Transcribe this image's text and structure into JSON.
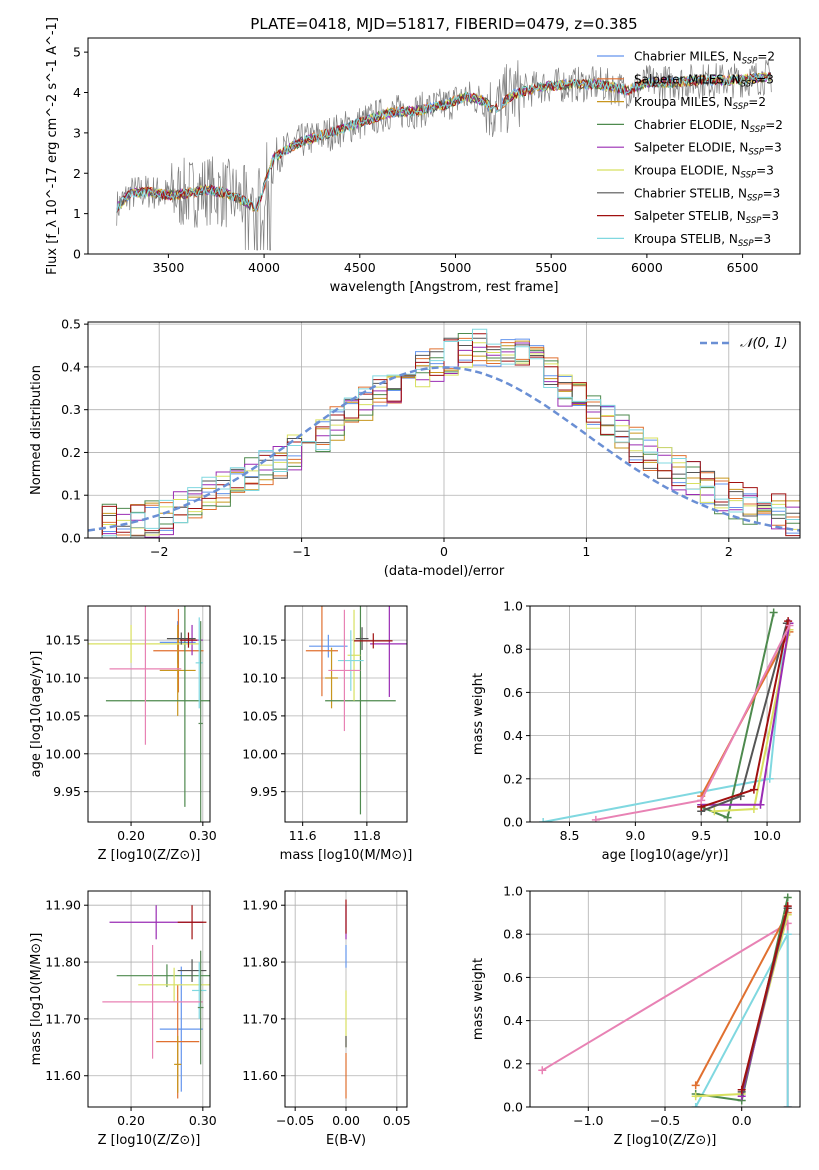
{
  "figure_title": "PLATE=0418, MJD=51817, FIBERID=0479, z=0.385",
  "models": [
    {
      "key": "chabrier_miles",
      "color": "#6495ed",
      "label_pre": "Chabrier MILES, N",
      "label_sub": "SSP",
      "label_post": "=2"
    },
    {
      "key": "salpeter_miles",
      "color": "#e07030",
      "label_pre": "Salpeter MILES, N",
      "label_sub": "SSP",
      "label_post": "=3"
    },
    {
      "key": "kroupa_miles",
      "color": "#c8961e",
      "label_pre": "Kroupa MILES, N",
      "label_sub": "SSP",
      "label_post": "=2"
    },
    {
      "key": "chabrier_elodie",
      "color": "#4e8a4e",
      "label_pre": "Chabrier ELODIE, N",
      "label_sub": "SSP",
      "label_post": "=2"
    },
    {
      "key": "salpeter_elodie",
      "color": "#9a2cb4",
      "label_pre": "Salpeter ELODIE, N",
      "label_sub": "SSP",
      "label_post": "=3"
    },
    {
      "key": "kroupa_elodie",
      "color": "#d8e060",
      "label_pre": "Kroupa ELODIE, N",
      "label_sub": "SSP",
      "label_post": "=3"
    },
    {
      "key": "chabrier_stelib",
      "color": "#555555",
      "label_pre": "Chabrier STELIB, N",
      "label_sub": "SSP",
      "label_post": "=3"
    },
    {
      "key": "salpeter_stelib",
      "color": "#a01010",
      "label_pre": "Salpeter STELIB, N",
      "label_sub": "SSP",
      "label_post": "=3"
    },
    {
      "key": "kroupa_stelib",
      "color": "#80d8e0",
      "label_pre": "Kroupa STELIB, N",
      "label_sub": "SSP",
      "label_post": "=3"
    }
  ],
  "chart_data": [
    {
      "id": "spectrum",
      "type": "line",
      "xlabel": "wavelength [Angstrom, rest frame]",
      "ylabel": "Flux [f_λ 10^-17 erg cm^-2 s^-1 A^-1]",
      "xlim": [
        3080,
        6800
      ],
      "ylim": [
        0,
        5.35
      ],
      "xticks": [
        3500,
        4000,
        4500,
        5000,
        5500,
        6000,
        6500
      ],
      "yticks": [
        0,
        1,
        2,
        3,
        4,
        5
      ],
      "grid": false,
      "legend_position": "right",
      "continuum": {
        "x": [
          3230,
          3300,
          3400,
          3500,
          3600,
          3700,
          3800,
          3900,
          3960,
          4050,
          4200,
          4350,
          4500,
          4650,
          4800,
          4950,
          5050,
          5150,
          5200,
          5300,
          5450,
          5600,
          5750,
          5900,
          6000,
          6150,
          6300,
          6450,
          6650
        ],
        "y": [
          1.15,
          1.5,
          1.55,
          1.45,
          1.5,
          1.6,
          1.5,
          1.3,
          1.1,
          2.4,
          2.8,
          3.0,
          3.25,
          3.5,
          3.55,
          3.7,
          3.9,
          3.8,
          3.55,
          3.95,
          4.15,
          4.2,
          4.2,
          4.05,
          4.25,
          4.25,
          4.3,
          4.3,
          4.4
        ]
      }
    },
    {
      "id": "residuals",
      "type": "bar",
      "xlabel": "(data-model)/error",
      "ylabel": "Normed distribution",
      "xlim": [
        -2.5,
        2.5
      ],
      "ylim": [
        0,
        0.505
      ],
      "xticks": [
        -2,
        -1,
        0,
        1,
        2
      ],
      "yticks": [
        0,
        0.1,
        0.2,
        0.3,
        0.4,
        0.5
      ],
      "grid": true,
      "legend_position": "top-right",
      "gaussian_label": "𝒩(0, 1)",
      "bin_width": 0.1,
      "envelope": {
        "x": [
          -2.5,
          -2.0,
          -1.5,
          -1.0,
          -0.5,
          0.0,
          0.3,
          0.6,
          1.0,
          1.5,
          2.0,
          2.5
        ],
        "y": [
          0.03,
          0.045,
          0.12,
          0.21,
          0.33,
          0.42,
          0.45,
          0.42,
          0.31,
          0.18,
          0.09,
          0.045
        ]
      }
    },
    {
      "id": "age_vs_Z",
      "type": "scatter",
      "xlabel": "Z [log10(Z/Z⊙)]",
      "ylabel": "age [log10(age/yr)]",
      "xlim": [
        0.14,
        0.31
      ],
      "ylim": [
        9.91,
        10.195
      ],
      "xticks": [
        0.2,
        0.3
      ],
      "yticks": [
        9.95,
        10.0,
        10.05,
        10.1,
        10.15
      ],
      "grid": true,
      "points": [
        {
          "model": "chabrier_miles",
          "x": 0.265,
          "xerr": 0.025,
          "y": 10.147,
          "yerr": 0.028
        },
        {
          "model": "salpeter_miles",
          "x": 0.266,
          "xerr": 0.035,
          "y": 10.136,
          "yerr": 0.055
        },
        {
          "model": "kroupa_miles",
          "x": 0.265,
          "xerr": 0.025,
          "y": 10.11,
          "yerr": 0.06
        },
        {
          "model": "chabrier_elodie",
          "x": 0.275,
          "xerr": 0.11,
          "y": 10.07,
          "yerr": 0.14
        },
        {
          "model": "salpeter_elodie",
          "x": 0.285,
          "xerr": 0.015,
          "y": 10.15,
          "yerr": 0.02
        },
        {
          "model": "kroupa_elodie",
          "x": 0.2,
          "xerr": 0.095,
          "y": 10.145,
          "yerr": 0.025
        },
        {
          "model": "chabrier_stelib",
          "x": 0.27,
          "xerr": 0.02,
          "y": 10.152,
          "yerr": 0.008
        },
        {
          "model": "salpeter_stelib",
          "x": 0.28,
          "xerr": 0.012,
          "y": 10.15,
          "yerr": 0.01
        },
        {
          "model": "kroupa_stelib",
          "x": 0.295,
          "xerr": 0.005,
          "y": 10.12,
          "yerr": 0.06
        },
        {
          "model": "pink",
          "x": 0.22,
          "xerr": 0.05,
          "y": 10.112,
          "yerr": 0.1
        },
        {
          "model": "green2",
          "x": 0.297,
          "xerr": 0.003,
          "y": 10.04,
          "yerr": 0.135
        }
      ]
    },
    {
      "id": "age_vs_mass",
      "type": "scatter",
      "xlabel": "mass [log10(M/M⊙)]",
      "ylabel": "",
      "xlim": [
        11.545,
        11.925
      ],
      "ylim": [
        9.91,
        10.195
      ],
      "xticks": [
        11.6,
        11.8
      ],
      "yticks": [
        9.95,
        10.0,
        10.05,
        10.1,
        10.15
      ],
      "grid": true,
      "points": [
        {
          "model": "chabrier_miles",
          "x": 11.68,
          "xerr": 0.06,
          "y": 10.142,
          "yerr": 0.015
        },
        {
          "model": "salpeter_miles",
          "x": 11.66,
          "xerr": 0.05,
          "y": 10.136,
          "yerr": 0.06
        },
        {
          "model": "kroupa_miles",
          "x": 11.69,
          "xerr": 0.02,
          "y": 10.1,
          "yerr": 0.04
        },
        {
          "model": "chabrier_elodie",
          "x": 11.78,
          "xerr": 0.11,
          "y": 10.07,
          "yerr": 0.15
        },
        {
          "model": "salpeter_elodie",
          "x": 11.87,
          "xerr": 0.06,
          "y": 10.145,
          "yerr": 0.07
        },
        {
          "model": "kroupa_elodie",
          "x": 11.76,
          "xerr": 0.02,
          "y": 10.13,
          "yerr": 0.06
        },
        {
          "model": "chabrier_stelib",
          "x": 11.785,
          "xerr": 0.02,
          "y": 10.152,
          "yerr": 0.015
        },
        {
          "model": "salpeter_stelib",
          "x": 11.82,
          "xerr": 0.06,
          "y": 10.149,
          "yerr": 0.01
        },
        {
          "model": "kroupa_stelib",
          "x": 11.75,
          "xerr": 0.04,
          "y": 10.123,
          "yerr": 0.04
        },
        {
          "model": "pink",
          "x": 11.73,
          "xerr": 0.05,
          "y": 10.11,
          "yerr": 0.08
        }
      ]
    },
    {
      "id": "weight_vs_age",
      "type": "line",
      "xlabel": "age [log10(age/yr)]",
      "ylabel": "mass weight",
      "xlim": [
        8.2,
        10.25
      ],
      "ylim": [
        0,
        1
      ],
      "xticks": [
        8.5,
        9.0,
        9.5,
        10.0
      ],
      "yticks": [
        0,
        0.2,
        0.4,
        0.6,
        0.8,
        1.0
      ],
      "grid": true,
      "series": [
        {
          "model": "kroupa_stelib",
          "x": [
            8.3,
            10.02,
            10.12
          ],
          "y": [
            0.0,
            0.2,
            0.8
          ]
        },
        {
          "model": "chabrier_elodie",
          "x": [
            9.5,
            9.7,
            10.05
          ],
          "y": [
            0.07,
            0.02,
            0.97
          ]
        },
        {
          "model": "salpeter_miles",
          "x": [
            9.5,
            10.17
          ],
          "y": [
            0.12,
            0.88
          ]
        },
        {
          "model": "kroupa_elodie",
          "x": [
            9.6,
            9.9,
            10.17
          ],
          "y": [
            0.05,
            0.06,
            0.89
          ]
        },
        {
          "model": "salpeter_elodie",
          "x": [
            9.5,
            9.95,
            10.17
          ],
          "y": [
            0.08,
            0.08,
            0.92
          ]
        },
        {
          "model": "chabrier_stelib",
          "x": [
            9.5,
            9.8,
            10.15
          ],
          "y": [
            0.05,
            0.12,
            0.92
          ]
        },
        {
          "model": "salpeter_stelib",
          "x": [
            9.5,
            9.9,
            10.16
          ],
          "y": [
            0.07,
            0.15,
            0.93
          ]
        },
        {
          "model": "pink",
          "x": [
            8.7,
            9.5,
            10.17
          ],
          "y": [
            0.01,
            0.1,
            0.91
          ]
        }
      ]
    },
    {
      "id": "mass_vs_Z",
      "type": "scatter",
      "xlabel": "Z [log10(Z/Z⊙)]",
      "ylabel": "mass [log10(M/M⊙)]",
      "xlim": [
        0.14,
        0.31
      ],
      "ylim": [
        11.545,
        11.925
      ],
      "xticks": [
        0.2,
        0.3
      ],
      "yticks": [
        11.6,
        11.7,
        11.8,
        11.9
      ],
      "grid": true,
      "points": [
        {
          "model": "chabrier_miles",
          "x": 0.27,
          "xerr": 0.03,
          "y": 11.682,
          "yerr": 0.11
        },
        {
          "model": "salpeter_miles",
          "x": 0.265,
          "xerr": 0.03,
          "y": 11.66,
          "yerr": 0.1
        },
        {
          "model": "kroupa_miles",
          "x": 0.265,
          "xerr": 0.005,
          "y": 11.62,
          "yerr": 0.05
        },
        {
          "model": "chabrier_elodie",
          "x": 0.25,
          "xerr": 0.07,
          "y": 11.776,
          "yerr": 0.02
        },
        {
          "model": "salpeter_elodie",
          "x": 0.235,
          "xerr": 0.065,
          "y": 11.87,
          "yerr": 0.03
        },
        {
          "model": "kroupa_elodie",
          "x": 0.26,
          "xerr": 0.05,
          "y": 11.76,
          "yerr": 0.03
        },
        {
          "model": "chabrier_stelib",
          "x": 0.285,
          "xerr": 0.02,
          "y": 11.785,
          "yerr": 0.02
        },
        {
          "model": "salpeter_stelib",
          "x": 0.285,
          "xerr": 0.02,
          "y": 11.87,
          "yerr": 0.03
        },
        {
          "model": "kroupa_stelib",
          "x": 0.295,
          "xerr": 0.01,
          "y": 11.75,
          "yerr": 0.05
        },
        {
          "model": "pink",
          "x": 0.23,
          "xerr": 0.07,
          "y": 11.73,
          "yerr": 0.1
        },
        {
          "model": "green2",
          "x": 0.297,
          "xerr": 0.004,
          "y": 11.72,
          "yerr": 0.1
        }
      ]
    },
    {
      "id": "mass_vs_ebv",
      "type": "scatter",
      "xlabel": "E(B-V)",
      "ylabel": "",
      "xlim": [
        -0.06,
        0.06
      ],
      "ylim": [
        11.545,
        11.925
      ],
      "xticks": [
        -0.05,
        0.0,
        0.05
      ],
      "yticks": [
        11.6,
        11.7,
        11.8,
        11.9
      ],
      "grid": true,
      "points": [
        {
          "model": "salpeter_miles",
          "x": 0.0,
          "xerr": 0.0005,
          "y": 11.6,
          "yerr": 0.04
        },
        {
          "model": "kroupa_elodie",
          "x": 0.0,
          "xerr": 0.0005,
          "y": 11.7,
          "yerr": 0.05
        },
        {
          "model": "chabrier_stelib",
          "x": 0.0,
          "xerr": 0.0005,
          "y": 11.66,
          "yerr": 0.01
        },
        {
          "model": "salpeter_elodie",
          "x": 0.0,
          "xerr": 0.0005,
          "y": 11.87,
          "yerr": 0.03
        },
        {
          "model": "chabrier_miles",
          "x": 0.0,
          "xerr": 0.0005,
          "y": 11.81,
          "yerr": 0.02
        },
        {
          "model": "salpeter_stelib",
          "x": 0.0,
          "xerr": 0.0005,
          "y": 11.88,
          "yerr": 0.03
        }
      ]
    },
    {
      "id": "weight_vs_Z",
      "type": "line",
      "xlabel": "Z [log10(Z/Z⊙)]",
      "ylabel": "mass weight",
      "xlim": [
        -1.38,
        0.38
      ],
      "ylim": [
        0,
        1
      ],
      "xticks": [
        -1.0,
        -0.5,
        0.0
      ],
      "yticks": [
        0,
        0.2,
        0.4,
        0.6,
        0.8,
        1.0
      ],
      "grid": true,
      "series": [
        {
          "model": "pink",
          "x": [
            -1.3,
            0.3,
            0.3
          ],
          "y": [
            0.17,
            0.85,
            0.0
          ]
        },
        {
          "model": "kroupa_stelib",
          "x": [
            -0.3,
            0.3,
            0.3
          ],
          "y": [
            0.0,
            0.8,
            0.0
          ]
        },
        {
          "model": "salpeter_miles",
          "x": [
            -0.3,
            0.3
          ],
          "y": [
            0.1,
            0.9
          ]
        },
        {
          "model": "chabrier_elodie",
          "x": [
            -0.3,
            0.0,
            0.3
          ],
          "y": [
            0.06,
            0.03,
            0.97
          ]
        },
        {
          "model": "kroupa_elodie",
          "x": [
            -0.3,
            0.0,
            0.3
          ],
          "y": [
            0.05,
            0.06,
            0.89
          ]
        },
        {
          "model": "salpeter_elodie",
          "x": [
            0.0,
            0.3
          ],
          "y": [
            0.05,
            0.92
          ]
        },
        {
          "model": "chabrier_stelib",
          "x": [
            0.0,
            0.3
          ],
          "y": [
            0.07,
            0.92
          ]
        },
        {
          "model": "salpeter_stelib",
          "x": [
            0.0,
            0.3
          ],
          "y": [
            0.08,
            0.93
          ]
        }
      ]
    }
  ]
}
